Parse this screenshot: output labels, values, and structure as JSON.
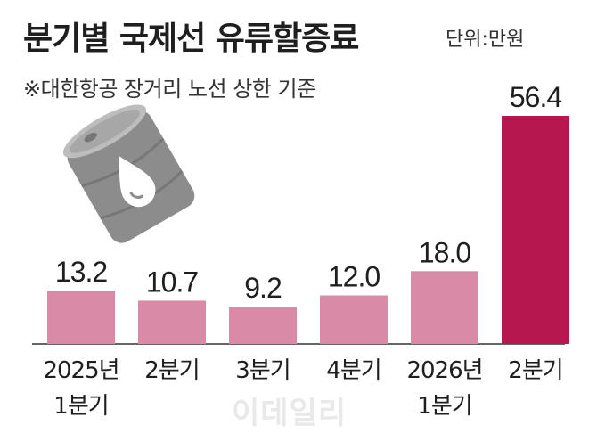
{
  "title": "분기별 국제선 유류할증료",
  "unit": "단위:만원",
  "note": "※대한항공 장거리 노선 상한 기준",
  "watermark": "이데일리",
  "colors": {
    "bar_normal": "#d98aa6",
    "bar_highlight": "#b7174f",
    "baseline": "#333333",
    "barrel": "#8c8c8c"
  },
  "chart_data": {
    "type": "bar",
    "categories": [
      "2025년\n1분기",
      "2분기",
      "3분기",
      "4분기",
      "2026년\n1분기",
      "2분기"
    ],
    "values": [
      13.2,
      10.7,
      9.2,
      12.0,
      18.0,
      56.4
    ],
    "value_labels": [
      "13.2",
      "10.7",
      "9.2",
      "12.0",
      "18.0",
      "56.4"
    ],
    "highlight_index": 5,
    "ylim": [
      0,
      56.4
    ],
    "grid": false,
    "title": "분기별 국제선 유류할증료",
    "xlabel": "",
    "ylabel": ""
  }
}
